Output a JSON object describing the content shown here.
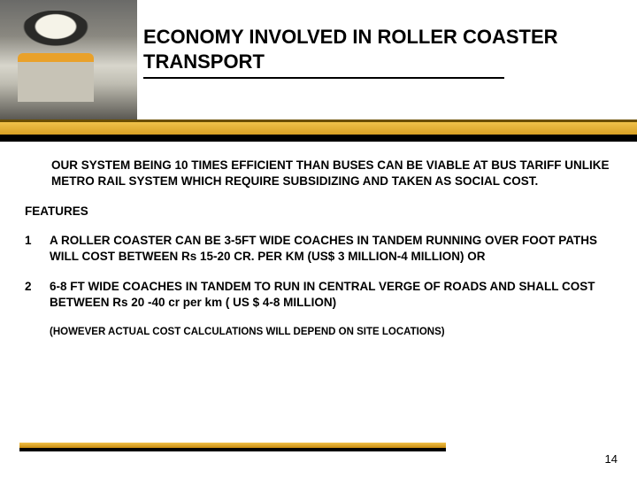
{
  "header": {
    "title_line1": "ECONOMY INVOLVED IN ROLLER COASTER",
    "title_line2": "TRANSPORT",
    "band_colors": {
      "top": "#6b4e00",
      "mid_from": "#f0c14a",
      "mid_to": "#d8a024",
      "bottom": "#000000"
    }
  },
  "body": {
    "intro": "OUR SYSTEM BEING  10 TIMES EFFICIENT THAN BUSES CAN BE VIABLE AT BUS TARIFF UNLIKE METRO RAIL SYSTEM WHICH REQUIRE SUBSIDIZING AND TAKEN AS SOCIAL COST.",
    "features_label": "FEATURES",
    "items": [
      {
        "num": "1",
        "text": "A ROLLER COASTER CAN BE   3-5FT WIDE COACHES IN TANDEM  RUNNING OVER FOOT PATHS  WILL COST BETWEEN  Rs 15-20 CR. PER KM (US$ 3 MILLION-4 MILLION)      OR"
      },
      {
        "num": "2",
        "text": "6-8 FT WIDE COACHES IN TANDEM TO RUN IN CENTRAL VERGE OF ROADS AND SHALL COST BETWEEN Rs 20 -40 cr per km ( US $ 4-8 MILLION)"
      }
    ],
    "note": "(HOWEVER ACTUAL COST CALCULATIONS WILL DEPEND ON SITE LOCATIONS)"
  },
  "footer": {
    "page_number": "14"
  }
}
